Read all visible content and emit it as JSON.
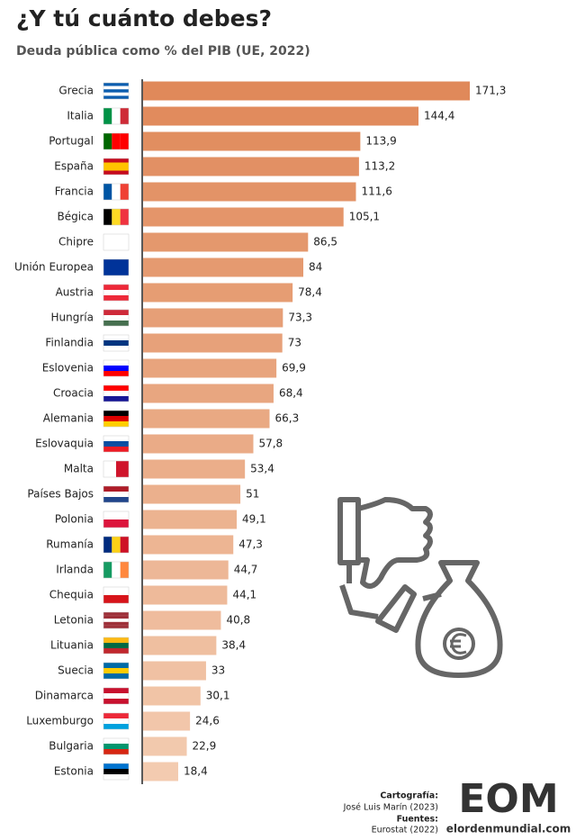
{
  "chart_data": {
    "type": "barh",
    "title": "¿Y tú cuánto debes?",
    "subtitle": "Deuda pública como % del PIB (UE, 2022)",
    "categories": [
      "Grecia",
      "Italia",
      "Portugal",
      "España",
      "Francia",
      "Bégica",
      "Chipre",
      "Unión Europea",
      "Austria",
      "Hungría",
      "Finlandia",
      "Eslovenia",
      "Croacia",
      "Alemania",
      "Eslovaquia",
      "Malta",
      "Países Bajos",
      "Polonia",
      "Rumanía",
      "Irlanda",
      "Chequia",
      "Letonia",
      "Lituania",
      "Suecia",
      "Dinamarca",
      "Luxemburgo",
      "Bulgaria",
      "Estonia"
    ],
    "values": [
      171.3,
      144.4,
      113.9,
      113.2,
      111.6,
      105.1,
      86.5,
      84,
      78.4,
      73.3,
      73,
      69.9,
      68.4,
      66.3,
      57.8,
      53.4,
      51,
      49.1,
      47.3,
      44.7,
      44.1,
      40.8,
      38.4,
      33,
      30.1,
      24.6,
      22.9,
      18.4
    ],
    "value_labels": [
      "171,3",
      "144,4",
      "113,9",
      "113,2",
      "111,6",
      "105,1",
      "86,5",
      "84",
      "78,4",
      "73,3",
      "73",
      "69,9",
      "68,4",
      "66,3",
      "57,8",
      "53,4",
      "51",
      "49,1",
      "47,3",
      "44,7",
      "44,1",
      "40,8",
      "38,4",
      "33",
      "30,1",
      "24,6",
      "22,9",
      "18,4"
    ],
    "color_range": [
      "#e0895a",
      "#f3cbb0"
    ]
  },
  "credits": {
    "label1": "Cartografía:",
    "text1": "José Luis Marín (2023)",
    "label2": "Fuentes:",
    "text2": "Eurostat (2022)"
  },
  "logo": {
    "mark": "EOM",
    "site": "elordenmundial.com"
  }
}
